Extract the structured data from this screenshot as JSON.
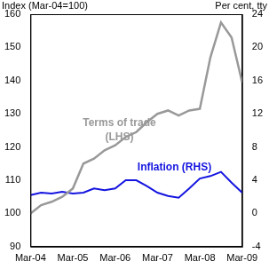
{
  "chart_data": {
    "type": "line",
    "y_label": "Index (Mar-04=100)",
    "y2_label": "Per cent, tty",
    "categories": [
      "Mar-04",
      null,
      null,
      null,
      "Mar-05",
      null,
      null,
      null,
      "Mar-06",
      null,
      null,
      null,
      "Mar-07",
      null,
      null,
      null,
      "Mar-08",
      null,
      null,
      null,
      "Mar-09"
    ],
    "series": [
      {
        "name": "Terms of trade (LHS)",
        "color": "#999999",
        "axis": "y",
        "values": [
          100,
          102.5,
          103.5,
          105,
          107.5,
          115,
          116.5,
          119,
          120.5,
          123,
          124.5,
          127.5,
          130,
          131,
          129.5,
          131,
          131.5,
          147,
          157.5,
          153,
          139.5
        ]
      },
      {
        "name": "Inflation (RHS)",
        "color": "#1414e0",
        "axis": "y2",
        "values": [
          2.2,
          2.5,
          2.4,
          2.6,
          2.4,
          2.5,
          3.0,
          2.8,
          3.0,
          4.0,
          4.0,
          3.3,
          2.5,
          2.1,
          1.9,
          3.0,
          4.2,
          4.5,
          5.0,
          3.7,
          2.5
        ]
      }
    ],
    "ylim": [
      90,
      160
    ],
    "yticks": [
      90,
      100,
      110,
      120,
      130,
      140,
      150,
      160
    ],
    "y2lim": [
      -4,
      24
    ],
    "y2ticks": [
      -4,
      0,
      4,
      8,
      12,
      16,
      20,
      24
    ],
    "grid": false
  }
}
